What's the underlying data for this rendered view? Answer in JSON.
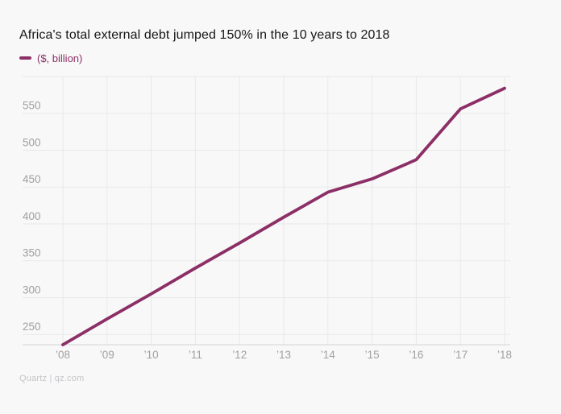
{
  "page": {
    "title": "Africa's total external debt jumped 150% in the 10 years to 2018",
    "source": "Quartz | qz.com"
  },
  "legend": {
    "swatch": "line-dash",
    "label": "($, billion)"
  },
  "colors": {
    "background": "#f8f8f8",
    "series": "#8c2f66",
    "grid": "#e9e9e9",
    "axis": "#d4d4d4",
    "tick_label": "#a0a0a0",
    "title": "#161616",
    "source": "#c5c5c9"
  },
  "chart_data": {
    "type": "line",
    "title": "Africa's total external debt jumped 150% in the 10 years to 2018",
    "ylabel": "($, billion)",
    "x": [
      2008,
      2009,
      2010,
      2011,
      2012,
      2013,
      2014,
      2015,
      2016,
      2017,
      2018
    ],
    "x_tick_labels": [
      "’08",
      "’09",
      "’10",
      "’11",
      "’12",
      "’13",
      "’14",
      "’15",
      "’16",
      "’17",
      "’18"
    ],
    "series": [
      {
        "name": "($, billion)",
        "values": [
          236,
          271,
          305,
          340,
          374,
          409,
          443,
          461,
          487,
          556,
          584
        ]
      }
    ],
    "y_ticks": [
      250,
      300,
      350,
      400,
      450,
      500,
      550
    ],
    "ylim": [
      236,
      600
    ],
    "grid": true,
    "legend_position": "top-left"
  }
}
